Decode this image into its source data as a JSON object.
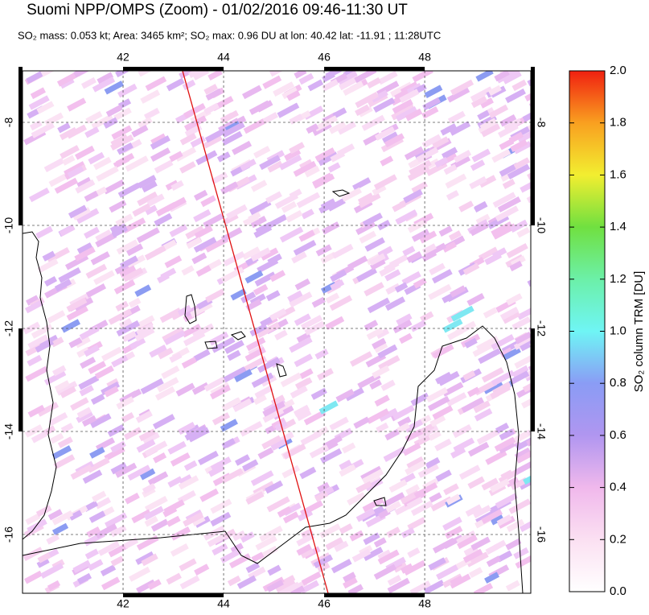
{
  "title": "Suomi NPP/OMPS (Zoom) - 01/02/2016 09:46-11:30 UT",
  "subtitle": "SO₂ mass: 0.053 kt; Area: 3465 km²; SO₂ max: 0.96 DU at lon: 40.42 lat: -11.91 ; 11:28UTC",
  "map": {
    "xlim": [
      40,
      50.11
    ],
    "ylim": [
      -7,
      -17.14
    ],
    "xticks": [
      42,
      44,
      46,
      48
    ],
    "yticks": [
      -8,
      -10,
      -12,
      -14,
      -16
    ]
  },
  "colorbar": {
    "label": "SO₂ column TRM [DU]",
    "lim": [
      0,
      2
    ],
    "ticks": [
      {
        "value": 0,
        "label": "0.0"
      },
      0.2,
      0.4,
      0.6,
      0.8,
      {
        "value": 1,
        "label": "1.0"
      },
      1.2,
      1.4,
      1.6,
      1.8,
      {
        "value": 2,
        "label": "2.0"
      }
    ]
  }
}
